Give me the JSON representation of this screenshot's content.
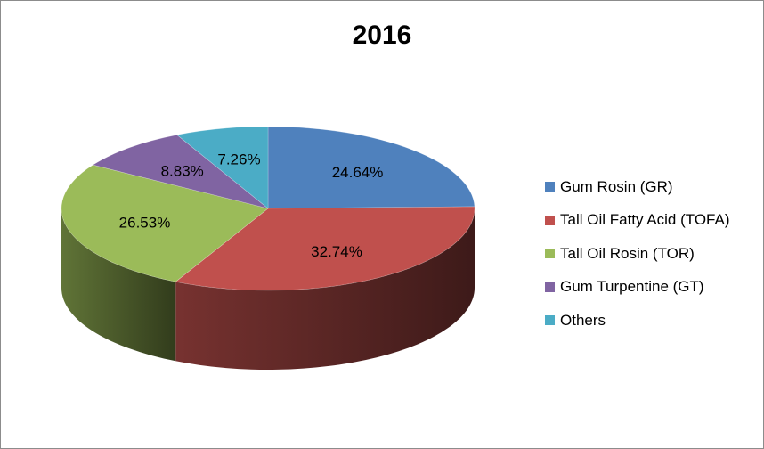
{
  "chart_data": {
    "type": "pie",
    "title": "2016",
    "categories": [
      "Gum Rosin (GR)",
      "Tall Oil Fatty Acid (TOFA)",
      "Tall Oil Rosin (TOR)",
      "Gum Turpentine (GT)",
      "Others"
    ],
    "values": [
      24.64,
      32.74,
      26.53,
      8.83,
      7.26
    ],
    "labels": [
      "24.64%",
      "32.74%",
      "26.53%",
      "8.83%",
      "7.26%"
    ],
    "colors": [
      "#4f81bd",
      "#c0504d",
      "#9bbb59",
      "#8064a2",
      "#4bacc6"
    ],
    "legend_position": "right",
    "style": "3d"
  }
}
